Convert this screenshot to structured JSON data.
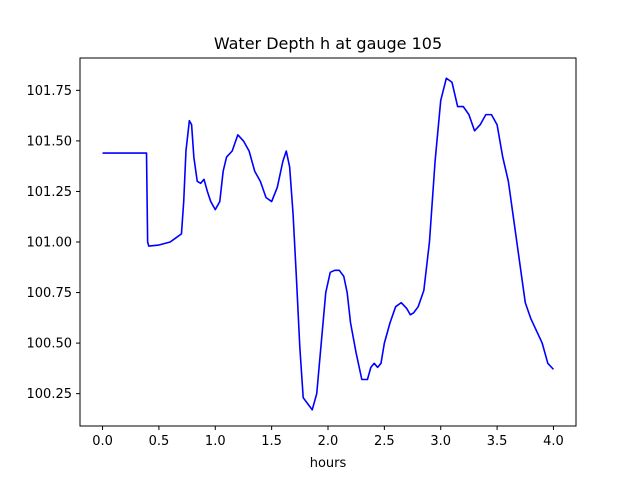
{
  "chart_data": {
    "type": "line",
    "title": "Water Depth h at gauge 105",
    "xlabel": "hours",
    "ylabel": "",
    "xlim": [
      -0.2,
      4.2
    ],
    "ylim": [
      100.09,
      101.91
    ],
    "xticks": [
      0.0,
      0.5,
      1.0,
      1.5,
      2.0,
      2.5,
      3.0,
      3.5,
      4.0
    ],
    "xtick_labels": [
      "0.0",
      "0.5",
      "1.0",
      "1.5",
      "2.0",
      "2.5",
      "3.0",
      "3.5",
      "4.0"
    ],
    "yticks": [
      100.25,
      100.5,
      100.75,
      101.0,
      101.25,
      101.5,
      101.75
    ],
    "ytick_labels": [
      "100.25",
      "100.50",
      "100.75",
      "101.00",
      "101.25",
      "101.50",
      "101.75"
    ],
    "grid": false,
    "series": [
      {
        "color": "#0000ff",
        "x": [
          0.0,
          0.1,
          0.2,
          0.3,
          0.39,
          0.4,
          0.41,
          0.5,
          0.6,
          0.65,
          0.7,
          0.72,
          0.74,
          0.77,
          0.79,
          0.81,
          0.84,
          0.87,
          0.9,
          0.93,
          0.96,
          1.0,
          1.04,
          1.07,
          1.1,
          1.15,
          1.2,
          1.25,
          1.3,
          1.35,
          1.4,
          1.45,
          1.5,
          1.55,
          1.6,
          1.63,
          1.66,
          1.69,
          1.72,
          1.75,
          1.78,
          1.82,
          1.86,
          1.9,
          1.94,
          1.98,
          2.02,
          2.06,
          2.1,
          2.14,
          2.17,
          2.2,
          2.25,
          2.3,
          2.35,
          2.38,
          2.41,
          2.44,
          2.47,
          2.5,
          2.55,
          2.6,
          2.65,
          2.7,
          2.73,
          2.76,
          2.8,
          2.85,
          2.9,
          2.95,
          3.0,
          3.05,
          3.1,
          3.15,
          3.2,
          3.25,
          3.3,
          3.35,
          3.4,
          3.45,
          3.5,
          3.55,
          3.6,
          3.65,
          3.7,
          3.75,
          3.8,
          3.85,
          3.9,
          3.95,
          4.0
        ],
        "y": [
          101.44,
          101.44,
          101.44,
          101.44,
          101.44,
          101.0,
          100.98,
          100.985,
          101.0,
          101.02,
          101.04,
          101.2,
          101.45,
          101.6,
          101.58,
          101.42,
          101.3,
          101.29,
          101.31,
          101.25,
          101.2,
          101.16,
          101.2,
          101.35,
          101.42,
          101.45,
          101.53,
          101.5,
          101.45,
          101.35,
          101.3,
          101.22,
          101.2,
          101.27,
          101.4,
          101.45,
          101.37,
          101.14,
          100.82,
          100.48,
          100.23,
          100.2,
          100.17,
          100.25,
          100.5,
          100.75,
          100.85,
          100.86,
          100.86,
          100.83,
          100.75,
          100.6,
          100.45,
          100.32,
          100.32,
          100.38,
          100.4,
          100.38,
          100.4,
          100.5,
          100.6,
          100.68,
          100.7,
          100.67,
          100.64,
          100.65,
          100.68,
          100.76,
          101.0,
          101.4,
          101.7,
          101.81,
          101.79,
          101.67,
          101.67,
          101.63,
          101.55,
          101.58,
          101.63,
          101.63,
          101.58,
          101.42,
          101.3,
          101.1,
          100.9,
          100.7,
          100.62,
          100.56,
          100.5,
          100.4,
          100.37
        ]
      }
    ]
  }
}
